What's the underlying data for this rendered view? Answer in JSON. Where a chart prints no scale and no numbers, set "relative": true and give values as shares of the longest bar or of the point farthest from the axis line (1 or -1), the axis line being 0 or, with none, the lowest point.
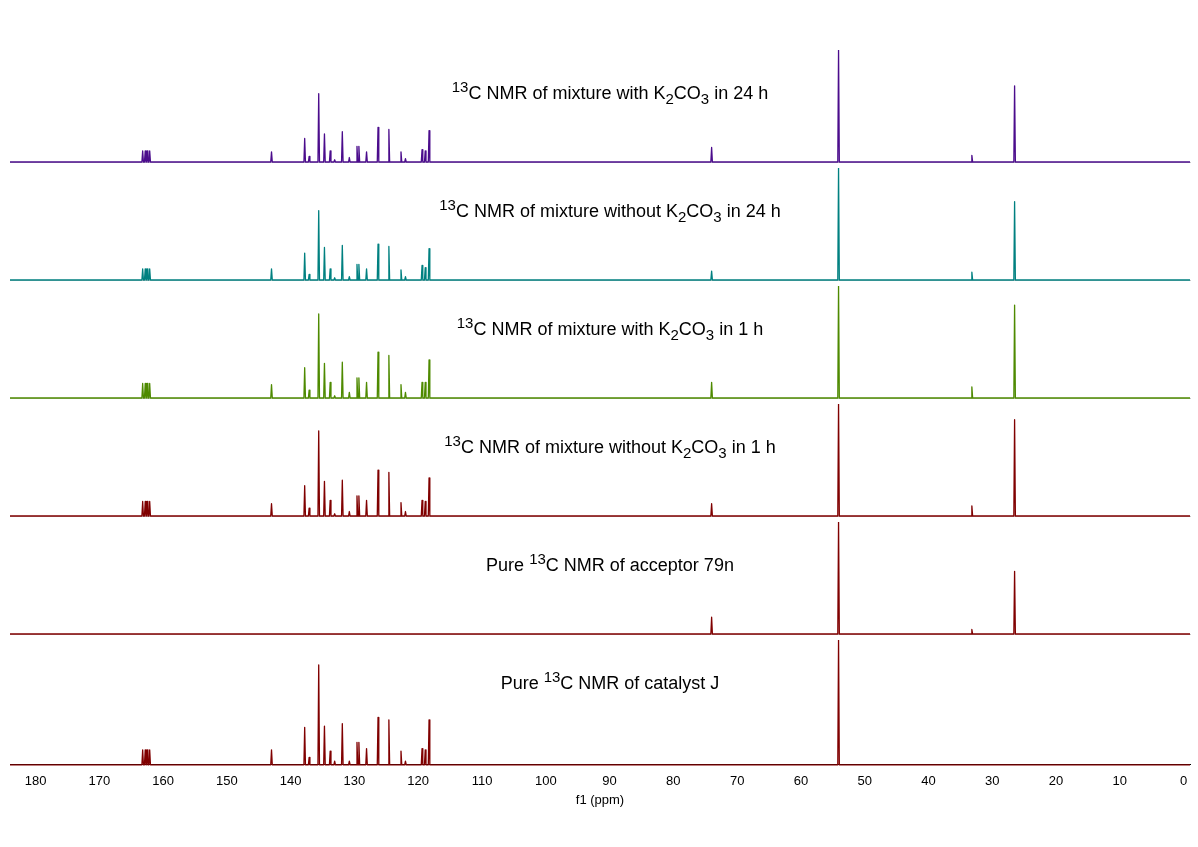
{
  "chart_data": [
    {
      "type": "line",
      "title": "$^{13}$C NMR of mixture with K$_{2}$CO$_{3}$ in 24 h",
      "color": "#4b0c8c",
      "relative": true,
      "tick_labels": false,
      "xlim": [
        184,
        -1
      ],
      "grid": false,
      "legend": false,
      "x": [
        184,
        163.32,
        163.2,
        163.08,
        162.92,
        162.8,
        162.68,
        162.62,
        162.5,
        162.38,
        162.22,
        162.1,
        161.98,
        143.12,
        143,
        142.88,
        137.92,
        137.8,
        137.68,
        137.22,
        137.1,
        136.98,
        135.72,
        135.6,
        135.48,
        134.82,
        134.7,
        134.58,
        133.92,
        133.8,
        133.68,
        133.22,
        133.1,
        132.98,
        132.02,
        131.9,
        131.78,
        130.92,
        130.8,
        130.68,
        129.72,
        129.6,
        129.48,
        129.42,
        129.3,
        129.18,
        128.22,
        128.1,
        127.98,
        126.42,
        126.3,
        126.18,
        124.72,
        124.6,
        124.48,
        122.82,
        122.7,
        122.58,
        122.12,
        122,
        121.88,
        119.52,
        119.4,
        119.28,
        119.02,
        118.9,
        118.78,
        118.42,
        118.3,
        118.18,
        74.12,
        74,
        73.88,
        54.22,
        54.1,
        53.98,
        33.32,
        33.2,
        33.08,
        26.62,
        26.5,
        26.38,
        -1
      ],
      "values": [
        0,
        0,
        0.1,
        0,
        0,
        0.1,
        0,
        0,
        0.1,
        0,
        0,
        0.1,
        0,
        0,
        0.09,
        0,
        0,
        0.21,
        0,
        0,
        0.05,
        0,
        0,
        0.61,
        0,
        0,
        0.25,
        0,
        0,
        0.1,
        0,
        0,
        0.02,
        0,
        0,
        0.27,
        0,
        0,
        0.04,
        0,
        0,
        0.14,
        0,
        0,
        0.14,
        0,
        0,
        0.09,
        0,
        0,
        0.31,
        0,
        0,
        0.29,
        0,
        0,
        0.09,
        0,
        0,
        0.03,
        0,
        0,
        0.11,
        0,
        0,
        0.1,
        0,
        0,
        0.28,
        0,
        0,
        0.13,
        0,
        0,
        1,
        0,
        0,
        0.06,
        0,
        0,
        0.68,
        0,
        0
      ]
    },
    {
      "type": "line",
      "title": "$^{13}$C NMR of mixture without K$_{2}$CO$_{3}$ in 24 h",
      "color": "#008080",
      "relative": true,
      "tick_labels": false,
      "xlim": [
        184,
        -1
      ],
      "grid": false,
      "legend": false,
      "x": [
        184,
        163.32,
        163.2,
        163.08,
        162.92,
        162.8,
        162.68,
        162.62,
        162.5,
        162.38,
        162.22,
        162.1,
        161.98,
        143.12,
        143,
        142.88,
        137.92,
        137.8,
        137.68,
        137.22,
        137.1,
        136.98,
        135.72,
        135.6,
        135.48,
        134.82,
        134.7,
        134.58,
        133.92,
        133.8,
        133.68,
        133.22,
        133.1,
        132.98,
        132.02,
        131.9,
        131.78,
        130.92,
        130.8,
        130.68,
        129.72,
        129.6,
        129.48,
        129.42,
        129.3,
        129.18,
        128.22,
        128.1,
        127.98,
        126.42,
        126.3,
        126.18,
        124.72,
        124.6,
        124.48,
        122.82,
        122.7,
        122.58,
        122.12,
        122,
        121.88,
        119.52,
        119.4,
        119.28,
        119.02,
        118.9,
        118.78,
        118.42,
        118.3,
        118.18,
        74.12,
        74,
        73.88,
        54.22,
        54.1,
        53.98,
        33.32,
        33.2,
        33.08,
        26.62,
        26.5,
        26.38,
        -1
      ],
      "values": [
        0,
        0,
        0.1,
        0,
        0,
        0.1,
        0,
        0,
        0.1,
        0,
        0,
        0.1,
        0,
        0,
        0.1,
        0,
        0,
        0.24,
        0,
        0,
        0.05,
        0,
        0,
        0.62,
        0,
        0,
        0.29,
        0,
        0,
        0.1,
        0,
        0,
        0.02,
        0,
        0,
        0.31,
        0,
        0,
        0.03,
        0,
        0,
        0.14,
        0,
        0,
        0.14,
        0,
        0,
        0.1,
        0,
        0,
        0.32,
        0,
        0,
        0.3,
        0,
        0,
        0.09,
        0,
        0,
        0.03,
        0,
        0,
        0.13,
        0,
        0,
        0.11,
        0,
        0,
        0.28,
        0,
        0,
        0.08,
        0,
        0,
        1,
        0,
        0,
        0.07,
        0,
        0,
        0.7,
        0,
        0
      ]
    },
    {
      "type": "line",
      "title": "$^{13}$C NMR of mixture with K$_{2}$CO$_{3}$ in 1 h",
      "color": "#4e8a00",
      "relative": true,
      "tick_labels": false,
      "xlim": [
        184,
        -1
      ],
      "grid": false,
      "legend": false,
      "x": [
        184,
        163.32,
        163.2,
        163.08,
        162.92,
        162.8,
        162.68,
        162.62,
        162.5,
        162.38,
        162.22,
        162.1,
        161.98,
        143.12,
        143,
        142.88,
        137.92,
        137.8,
        137.68,
        137.22,
        137.1,
        136.98,
        135.72,
        135.6,
        135.48,
        134.82,
        134.7,
        134.58,
        133.92,
        133.8,
        133.68,
        133.22,
        133.1,
        132.98,
        132.02,
        131.9,
        131.78,
        130.92,
        130.8,
        130.68,
        129.72,
        129.6,
        129.48,
        129.42,
        129.3,
        129.18,
        128.22,
        128.1,
        127.98,
        126.42,
        126.3,
        126.18,
        124.72,
        124.6,
        124.48,
        122.82,
        122.7,
        122.58,
        122.12,
        122,
        121.88,
        119.52,
        119.4,
        119.28,
        119.02,
        118.9,
        118.78,
        118.42,
        118.3,
        118.18,
        74.12,
        74,
        73.88,
        54.22,
        54.1,
        53.98,
        33.32,
        33.2,
        33.08,
        26.62,
        26.5,
        26.38,
        -1
      ],
      "values": [
        0,
        0,
        0.13,
        0,
        0,
        0.13,
        0,
        0,
        0.13,
        0,
        0,
        0.13,
        0,
        0,
        0.12,
        0,
        0,
        0.27,
        0,
        0,
        0.07,
        0,
        0,
        0.75,
        0,
        0,
        0.31,
        0,
        0,
        0.14,
        0,
        0,
        0.02,
        0,
        0,
        0.32,
        0,
        0,
        0.05,
        0,
        0,
        0.18,
        0,
        0,
        0.18,
        0,
        0,
        0.14,
        0,
        0,
        0.41,
        0,
        0,
        0.38,
        0,
        0,
        0.12,
        0,
        0,
        0.05,
        0,
        0,
        0.14,
        0,
        0,
        0.14,
        0,
        0,
        0.34,
        0,
        0,
        0.14,
        0,
        0,
        1,
        0,
        0,
        0.1,
        0,
        0,
        0.83,
        0,
        0
      ]
    },
    {
      "type": "line",
      "title": "$^{13}$C NMR of mixture without K$_{2}$CO$_{3}$ in 1 h",
      "color": "#800000",
      "relative": true,
      "tick_labels": false,
      "xlim": [
        184,
        -1
      ],
      "grid": false,
      "legend": false,
      "x": [
        184,
        163.32,
        163.2,
        163.08,
        162.92,
        162.8,
        162.68,
        162.62,
        162.5,
        162.38,
        162.22,
        162.1,
        161.98,
        143.12,
        143,
        142.88,
        137.92,
        137.8,
        137.68,
        137.22,
        137.1,
        136.98,
        135.72,
        135.6,
        135.48,
        134.82,
        134.7,
        134.58,
        133.92,
        133.8,
        133.68,
        133.22,
        133.1,
        132.98,
        132.02,
        131.9,
        131.78,
        130.92,
        130.8,
        130.68,
        129.72,
        129.6,
        129.48,
        129.42,
        129.3,
        129.18,
        128.22,
        128.1,
        127.98,
        126.42,
        126.3,
        126.18,
        124.72,
        124.6,
        124.48,
        122.82,
        122.7,
        122.58,
        122.12,
        122,
        121.88,
        119.52,
        119.4,
        119.28,
        119.02,
        118.9,
        118.78,
        118.42,
        118.3,
        118.18,
        74.12,
        74,
        73.88,
        54.22,
        54.1,
        53.98,
        33.32,
        33.2,
        33.08,
        26.62,
        26.5,
        26.38,
        -1
      ],
      "values": [
        0,
        0,
        0.13,
        0,
        0,
        0.13,
        0,
        0,
        0.13,
        0,
        0,
        0.13,
        0,
        0,
        0.11,
        0,
        0,
        0.27,
        0,
        0,
        0.07,
        0,
        0,
        0.76,
        0,
        0,
        0.31,
        0,
        0,
        0.14,
        0,
        0,
        0.02,
        0,
        0,
        0.32,
        0,
        0,
        0.04,
        0,
        0,
        0.18,
        0,
        0,
        0.18,
        0,
        0,
        0.14,
        0,
        0,
        0.41,
        0,
        0,
        0.39,
        0,
        0,
        0.12,
        0,
        0,
        0.04,
        0,
        0,
        0.14,
        0,
        0,
        0.13,
        0,
        0,
        0.34,
        0,
        0,
        0.11,
        0,
        0,
        1,
        0,
        0,
        0.09,
        0,
        0,
        0.86,
        0,
        0
      ]
    },
    {
      "type": "line",
      "title": "Pure $^{13}$C NMR of acceptor 79n",
      "color": "#800000",
      "relative": true,
      "tick_labels": false,
      "xlim": [
        184,
        -1
      ],
      "grid": false,
      "legend": false,
      "x": [
        184,
        74.12,
        74,
        73.88,
        54.22,
        54.1,
        53.98,
        33.32,
        33.2,
        33.08,
        26.62,
        26.5,
        26.38,
        -1
      ],
      "values": [
        0,
        0,
        0.15,
        0,
        0,
        1,
        0,
        0,
        0.04,
        0,
        0,
        0.56,
        0,
        0
      ]
    },
    {
      "type": "line",
      "title": "Pure $^{13}$C NMR of catalyst J",
      "color": "#800000",
      "relative": true,
      "tick_labels": "x",
      "xlabel": "f1 (ppm)",
      "xlim": [
        184,
        -1
      ],
      "xticks": [
        180,
        170,
        160,
        150,
        140,
        130,
        120,
        110,
        100,
        90,
        80,
        70,
        60,
        50,
        40,
        30,
        20,
        10,
        0
      ],
      "grid": false,
      "legend": false,
      "x": [
        184,
        163.32,
        163.2,
        163.08,
        162.92,
        162.8,
        162.68,
        162.62,
        162.5,
        162.38,
        162.22,
        162.1,
        161.98,
        143.12,
        143,
        142.88,
        137.92,
        137.8,
        137.68,
        137.22,
        137.1,
        136.98,
        135.72,
        135.6,
        135.48,
        134.82,
        134.7,
        134.58,
        133.92,
        133.8,
        133.68,
        133.22,
        133.1,
        132.98,
        132.02,
        131.9,
        131.78,
        130.92,
        130.8,
        130.68,
        129.72,
        129.6,
        129.48,
        129.42,
        129.3,
        129.18,
        128.22,
        128.1,
        127.98,
        126.42,
        126.3,
        126.18,
        124.72,
        124.6,
        124.48,
        122.82,
        122.7,
        122.58,
        122.12,
        122,
        121.88,
        119.52,
        119.4,
        119.28,
        119.02,
        118.9,
        118.78,
        118.42,
        118.3,
        118.18,
        54.22,
        54.1,
        53.98,
        -1
      ],
      "values": [
        0,
        0,
        0.12,
        0,
        0,
        0.12,
        0,
        0,
        0.12,
        0,
        0,
        0.12,
        0,
        0,
        0.12,
        0,
        0,
        0.3,
        0,
        0,
        0.06,
        0,
        0,
        0.8,
        0,
        0,
        0.31,
        0,
        0,
        0.11,
        0,
        0,
        0.03,
        0,
        0,
        0.33,
        0,
        0,
        0.03,
        0,
        0,
        0.18,
        0,
        0,
        0.18,
        0,
        0,
        0.13,
        0,
        0,
        0.38,
        0,
        0,
        0.36,
        0,
        0,
        0.11,
        0,
        0,
        0.03,
        0,
        0,
        0.13,
        0,
        0,
        0.12,
        0,
        0,
        0.36,
        0,
        0,
        1,
        0,
        0
      ]
    }
  ]
}
